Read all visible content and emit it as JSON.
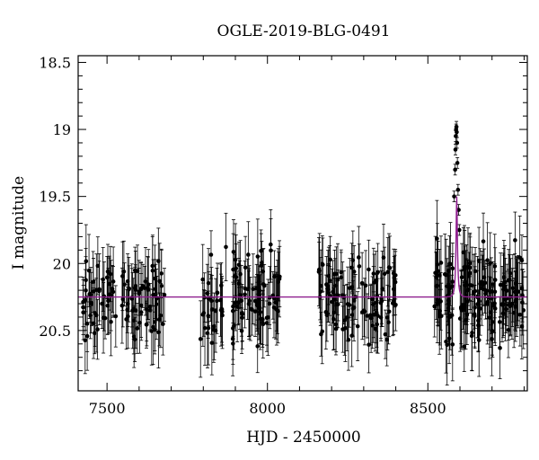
{
  "chart_data": {
    "type": "scatter",
    "title": "OGLE-2019-BLG-0491",
    "xlabel": "HJD - 2450000",
    "ylabel": "I magnitude",
    "xlim": [
      7410,
      8810
    ],
    "ylim": [
      20.95,
      18.45
    ],
    "y_inverted": true,
    "xticks": [
      7500,
      8000,
      8500
    ],
    "xtick_labels": [
      "7500",
      "8000",
      "8500"
    ],
    "yticks": [
      18.5,
      19,
      19.5,
      20,
      20.5
    ],
    "ytick_labels": [
      "18.5",
      "19",
      "19.5",
      "20",
      "20.5"
    ],
    "grid": false,
    "legend": "none",
    "colors": {
      "points": "#000000",
      "model": "#8e1e8e"
    },
    "series": [
      {
        "kind": "observations",
        "seasons": [
          {
            "x_range": [
              7420,
              7680
            ],
            "baseline": 20.25,
            "scatter": 0.28,
            "error": 0.22
          },
          {
            "x_range": [
              7790,
              8040
            ],
            "baseline": 20.25,
            "scatter": 0.28,
            "error": 0.22
          },
          {
            "x_range": [
              8160,
              8400
            ],
            "baseline": 20.25,
            "scatter": 0.28,
            "error": 0.22
          },
          {
            "x_range": [
              8520,
              8800
            ],
            "baseline": 20.25,
            "scatter": 0.3,
            "error": 0.24
          }
        ],
        "event_points": [
          {
            "x": 8582,
            "y": 19.5
          },
          {
            "x": 8585,
            "y": 19.3
          },
          {
            "x": 8586,
            "y": 19.15
          },
          {
            "x": 8587,
            "y": 19.05
          },
          {
            "x": 8588,
            "y": 19.0
          },
          {
            "x": 8589,
            "y": 18.98
          },
          {
            "x": 8590,
            "y": 19.02
          },
          {
            "x": 8591,
            "y": 19.1
          },
          {
            "x": 8592,
            "y": 19.25
          },
          {
            "x": 8594,
            "y": 19.45
          },
          {
            "x": 8596,
            "y": 19.6
          },
          {
            "x": 8598,
            "y": 19.75
          }
        ]
      },
      {
        "kind": "model",
        "baseline": 20.25,
        "peak_x": 8590,
        "peak_y": 19.5,
        "t_E": 6.5
      }
    ]
  }
}
